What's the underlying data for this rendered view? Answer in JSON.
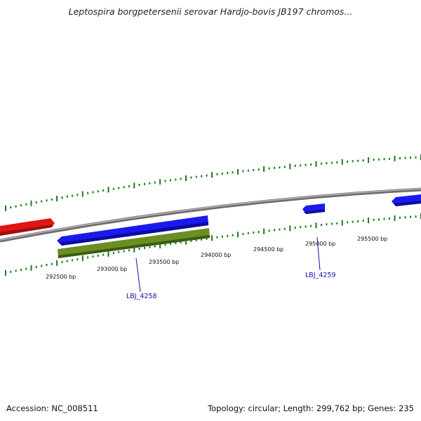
{
  "title": "Leptospira borgpetersenii serovar Hardjo-bovis JB197 chromos...",
  "footer": {
    "accession": "Accession: NC_008511",
    "summary": "Topology: circular; Length: 299,762 bp; Genes: 235"
  },
  "scale_labels": [
    "292500 bp",
    "293000 bp",
    "293500 bp",
    "294000 bp",
    "294500 bp",
    "295000 bp",
    "295500 bp"
  ],
  "gene_labels": [
    "LBJ_4258",
    "LBJ_4259"
  ],
  "colors": {
    "backbone": "#8c8c8c",
    "tick": "#1a7a1a",
    "forward_gene": "#1a1af0",
    "reverse_gene": "#e01515",
    "cds_feature": "#6b8e23",
    "gene_label": "#1010b0"
  }
}
